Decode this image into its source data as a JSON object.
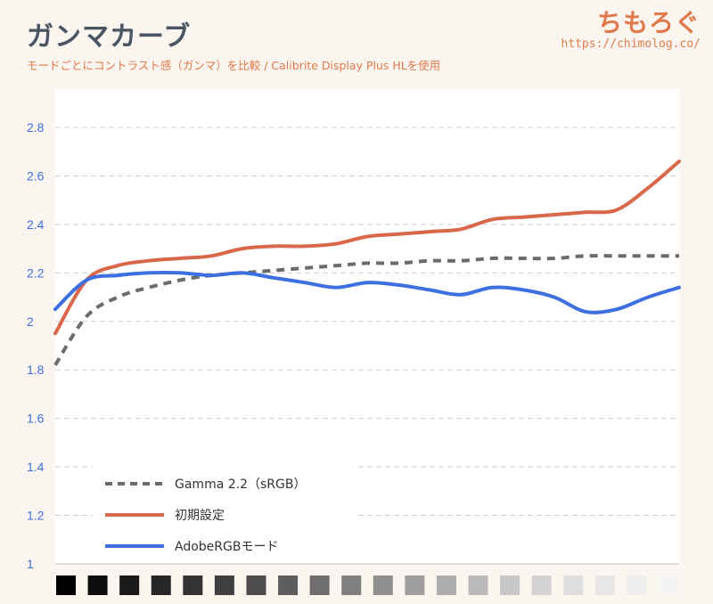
{
  "header": {
    "title": "ガンマカーブ",
    "subtitle": "モードごとにコントラスト感（ガンマ）を比較 / Calibrite Display Plus HLを使用",
    "brand_logo": "ちもろぐ",
    "brand_url": "https://chimolog.co/"
  },
  "chart_data": {
    "type": "line",
    "ylim": [
      1,
      2.9
    ],
    "yticks": [
      "1",
      "1.2",
      "1.4",
      "1.6",
      "1.8",
      "2",
      "2.2",
      "2.4",
      "2.6",
      "2.8"
    ],
    "x": [
      0,
      1,
      2,
      3,
      4,
      5,
      6,
      7,
      8,
      9,
      10,
      11,
      12,
      13,
      14,
      15,
      16,
      17,
      18,
      19,
      20
    ],
    "grid": true,
    "legend_position": "bottom-left",
    "series": [
      {
        "name": "Gamma 2.2（sRGB）",
        "color": "#6b6b6b",
        "dashed": true,
        "values": [
          1.82,
          2.02,
          2.1,
          2.14,
          2.17,
          2.19,
          2.2,
          2.21,
          2.22,
          2.23,
          2.24,
          2.24,
          2.25,
          2.25,
          2.26,
          2.26,
          2.26,
          2.27,
          2.27,
          2.27,
          2.27
        ]
      },
      {
        "name": "初期設定",
        "color": "#d9674a",
        "dashed": false,
        "values": [
          1.95,
          2.17,
          2.23,
          2.25,
          2.26,
          2.27,
          2.3,
          2.31,
          2.31,
          2.32,
          2.35,
          2.36,
          2.37,
          2.38,
          2.42,
          2.43,
          2.44,
          2.45,
          2.46,
          2.55,
          2.66
        ]
      },
      {
        "name": "AdobeRGBモード",
        "color": "#3d6fe0",
        "dashed": false,
        "values": [
          2.05,
          2.17,
          2.19,
          2.2,
          2.2,
          2.19,
          2.2,
          2.18,
          2.16,
          2.14,
          2.16,
          2.15,
          2.13,
          2.11,
          2.14,
          2.13,
          2.1,
          2.04,
          2.05,
          2.1,
          2.14
        ]
      }
    ],
    "grayscale_swatches": [
      "#000000",
      "#0d0d0d",
      "#1a1a1a",
      "#262626",
      "#333333",
      "#404040",
      "#4d4d4d",
      "#5e5e5e",
      "#6e6e6e",
      "#7f7f7f",
      "#8f8f8f",
      "#9e9e9e",
      "#adadad",
      "#bababa",
      "#c7c7c7",
      "#d3d3d3",
      "#dedede",
      "#e6e6e6",
      "#eeeeee",
      "#f4f4f4"
    ]
  }
}
